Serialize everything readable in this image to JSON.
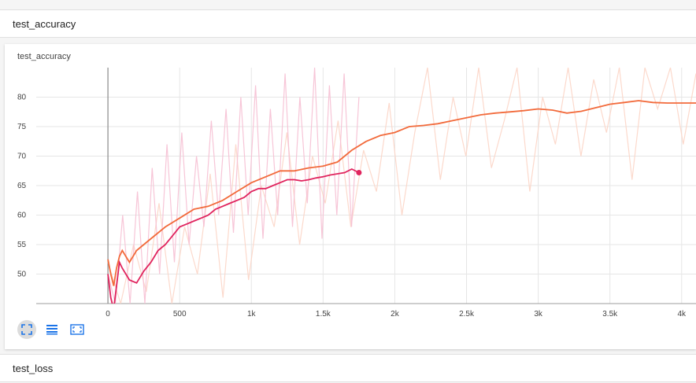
{
  "headers": {
    "accuracy": "test_accuracy",
    "loss": "test_loss"
  },
  "card": {
    "title": "test_accuracy"
  },
  "toolbar": {
    "icons": [
      "fit-domain-icon",
      "toggle-log-scale-icon",
      "expand-chart-icon"
    ],
    "color": "#1a73e8"
  },
  "colors": {
    "series_orange": "#f26a3b",
    "series_orange_raw": "#fcd5c6",
    "series_pink": "#e0245e",
    "series_pink_raw": "#f6bfd3",
    "grid": "#e6e6e6",
    "axis": "#9e9e9e"
  },
  "chart_data": {
    "type": "line",
    "title": "test_accuracy",
    "xlabel": "",
    "ylabel": "",
    "xlim": [
      -500,
      4100
    ],
    "ylim": [
      45,
      85
    ],
    "grid": true,
    "x_ticks": [
      {
        "v": 0,
        "label": "0"
      },
      {
        "v": 500,
        "label": "500"
      },
      {
        "v": 1000,
        "label": "1k"
      },
      {
        "v": 1500,
        "label": "1.5k"
      },
      {
        "v": 2000,
        "label": "2k"
      },
      {
        "v": 2500,
        "label": "2.5k"
      },
      {
        "v": 3000,
        "label": "3k"
      },
      {
        "v": 3500,
        "label": "3.5k"
      },
      {
        "v": 4000,
        "label": "4k"
      }
    ],
    "y_ticks": [
      {
        "v": 50,
        "label": "50"
      },
      {
        "v": 55,
        "label": "55"
      },
      {
        "v": 60,
        "label": "60"
      },
      {
        "v": 65,
        "label": "65"
      },
      {
        "v": 70,
        "label": "70"
      },
      {
        "v": 75,
        "label": "75"
      },
      {
        "v": 80,
        "label": "80"
      }
    ],
    "series": [
      {
        "color": "#f26a3b",
        "raw_color": "#fcd5c6",
        "x": [
          0,
          20,
          40,
          60,
          80,
          100,
          150,
          200,
          250,
          300,
          400,
          500,
          600,
          700,
          800,
          900,
          1000,
          1100,
          1200,
          1300,
          1400,
          1500,
          1600,
          1700,
          1800,
          1900,
          2000,
          2100,
          2200,
          2300,
          2400,
          2500,
          2600,
          2700,
          2800,
          2900,
          3000,
          3100,
          3200,
          3300,
          3400,
          3500,
          3600,
          3700,
          3800,
          3900,
          4000,
          4100
        ],
        "y": [
          52.5,
          50,
          48,
          51,
          53,
          54,
          52,
          54,
          55,
          56,
          58,
          59.5,
          61,
          61.5,
          62.5,
          64,
          65.5,
          66.5,
          67.5,
          67.5,
          68,
          68.3,
          69,
          71,
          72.5,
          73.5,
          74,
          75,
          75.2,
          75.5,
          76,
          76.5,
          77,
          77.3,
          77.5,
          77.7,
          78,
          77.8,
          77.3,
          77.6,
          78.2,
          78.8,
          79.1,
          79.4,
          79.1,
          79,
          79,
          79
        ],
        "raw_y": [
          52,
          44,
          55,
          47,
          62,
          40,
          58,
          50,
          67,
          46,
          72,
          49,
          65,
          58,
          74,
          55,
          70,
          62,
          76,
          58,
          71,
          64,
          79,
          60,
          74,
          85,
          66,
          80,
          70,
          86,
          68,
          76,
          90,
          64,
          80,
          72,
          88,
          70,
          83,
          74,
          90,
          66,
          86,
          78,
          88,
          72,
          84
        ],
        "raw_x_start": 0,
        "raw_x_end": 4100
      },
      {
        "color": "#e0245e",
        "raw_color": "#f6bfd3",
        "x": [
          0,
          20,
          40,
          60,
          80,
          100,
          150,
          200,
          250,
          300,
          350,
          400,
          450,
          500,
          550,
          600,
          650,
          700,
          750,
          800,
          850,
          900,
          950,
          1000,
          1050,
          1100,
          1150,
          1200,
          1250,
          1300,
          1350,
          1400,
          1450,
          1500,
          1550,
          1600,
          1650,
          1700,
          1750
        ],
        "y": [
          50,
          46,
          44,
          48,
          52,
          51,
          49,
          48.5,
          50.5,
          52,
          54,
          55,
          56.5,
          58,
          58.5,
          59,
          59.5,
          60,
          61,
          61.5,
          62,
          62.5,
          63,
          64,
          64.5,
          64.5,
          65,
          65.5,
          66,
          66,
          65.8,
          66,
          66.3,
          66.5,
          66.8,
          67,
          67.2,
          67.8,
          67.2
        ],
        "raw_y": [
          50,
          40,
          60,
          43,
          64,
          45,
          68,
          50,
          72,
          52,
          74,
          55,
          70,
          58,
          76,
          60,
          78,
          57,
          80,
          60,
          82,
          56,
          78,
          60,
          84,
          58,
          80,
          62,
          86,
          56,
          82,
          60,
          84,
          58,
          80
        ],
        "raw_x_start": 0,
        "raw_x_end": 1750,
        "last_point": [
          1750,
          67.2
        ]
      }
    ]
  }
}
